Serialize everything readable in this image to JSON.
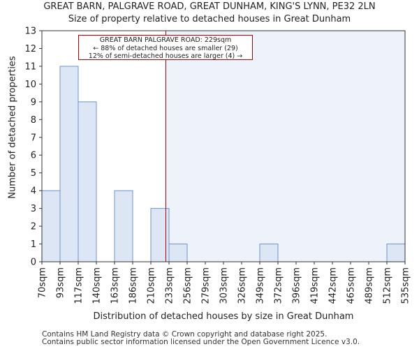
{
  "title": "GREAT BARN, PALGRAVE ROAD, GREAT DUNHAM, KING'S LYNN, PE32 2LN",
  "subtitle": "Size of property relative to detached houses in Great Dunham",
  "footer": {
    "line1": "Contains HM Land Registry data © Crown copyright and database right 2025.",
    "line2": "Contains public sector information licensed under the Open Government Licence v3.0."
  },
  "chart_data": {
    "type": "bar",
    "title": "GREAT BARN, PALGRAVE ROAD, GREAT DUNHAM, KING'S LYNN, PE32 2LN",
    "subtitle": "Size of property relative to detached houses in Great Dunham",
    "xlabel": "Distribution of detached houses by size in Great Dunham",
    "ylabel": "Number of detached properties",
    "bin_edges": [
      "70sqm",
      "93sqm",
      "117sqm",
      "140sqm",
      "163sqm",
      "186sqm",
      "210sqm",
      "233sqm",
      "256sqm",
      "279sqm",
      "303sqm",
      "326sqm",
      "349sqm",
      "372sqm",
      "396sqm",
      "419sqm",
      "442sqm",
      "465sqm",
      "489sqm",
      "512sqm",
      "535sqm"
    ],
    "values": [
      4,
      11,
      9,
      0,
      4,
      0,
      3,
      1,
      0,
      0,
      0,
      0,
      1,
      0,
      0,
      0,
      0,
      0,
      0,
      1
    ],
    "ylim": [
      0,
      13
    ],
    "yticks": [
      0,
      1,
      2,
      3,
      4,
      5,
      6,
      7,
      8,
      9,
      10,
      11,
      12,
      13
    ],
    "property_size": 229,
    "annotation": {
      "line1": "GREAT BARN PALGRAVE ROAD: 229sqm",
      "line2": "← 88% of detached houses are smaller (29)",
      "line3": "12% of semi-detached houses are larger (4) →"
    },
    "colors": {
      "bar_fill": "#dce6f5",
      "bar_edge": "#6f94c6",
      "highlight_region": "#eef2fb",
      "property_line": "#b00000"
    },
    "grid": false,
    "legend": "none"
  }
}
